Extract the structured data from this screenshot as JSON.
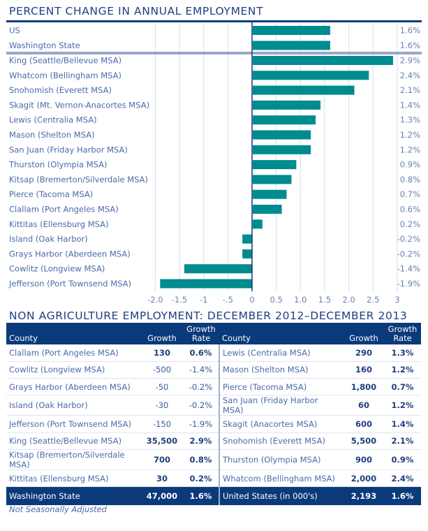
{
  "chart_data": {
    "type": "bar",
    "orientation": "horizontal",
    "title": "PERCENT CHANGE IN ANNUAL EMPLOYMENT",
    "xlabel": "",
    "ylabel": "",
    "xlim": [
      -2.0,
      3.0
    ],
    "x_ticks": [
      -2.0,
      -1.5,
      -1.0,
      -0.5,
      0,
      0.5,
      1.0,
      1.5,
      2.0,
      2.5,
      3.0
    ],
    "x_tick_labels": [
      "-2.0",
      "-1.5",
      "-1",
      "-.5",
      "0",
      "0.5",
      "1.0",
      "1.5",
      "2.0",
      "2.5",
      "3"
    ],
    "grid": true,
    "bar_color": "#008b8f",
    "benchmark_categories": [
      "US",
      "Washington State"
    ],
    "benchmark_values": [
      1.6,
      1.6
    ],
    "benchmark_value_labels": [
      "1.6%",
      "1.6%"
    ],
    "categories": [
      "King (Seattle/Bellevue MSA)",
      "Whatcom (Bellingham MSA)",
      "Snohomish (Everett MSA)",
      "Skagit (Mt. Vernon-Anacortes MSA)",
      "Lewis (Centralia MSA)",
      "Mason (Shelton MSA)",
      "San Juan (Friday Harbor MSA)",
      "Thurston (Olympia MSA)",
      "Kitsap (Bremerton/Silverdale MSA)",
      "Pierce (Tacoma MSA)",
      "Clallam (Port Angeles MSA)",
      "Kittitas (Ellensburg MSA)",
      "Island (Oak Harbor)",
      "Grays Harbor (Aberdeen MSA)",
      "Cowlitz (Longview MSA)",
      "Jefferson (Port Townsend MSA)"
    ],
    "values": [
      2.9,
      2.4,
      2.1,
      1.4,
      1.3,
      1.2,
      1.2,
      0.9,
      0.8,
      0.7,
      0.6,
      0.2,
      -0.2,
      -0.2,
      -1.4,
      -1.9
    ],
    "value_labels": [
      "2.9%",
      "2.4%",
      "2.1%",
      "1.4%",
      "1.3%",
      "1.2%",
      "1.2%",
      "0.9%",
      "0.8%",
      "0.7%",
      "0.6%",
      "0.2%",
      "-0.2%",
      "-0.2%",
      "-1.4%",
      "-1.9%"
    ]
  },
  "table": {
    "title": "NON AGRICULTURE EMPLOYMENT: DECEMBER 2012–DECEMBER 2013",
    "headers": {
      "county": "County",
      "growth": "Growth",
      "rate_line1": "Growth",
      "rate_line2": "Rate"
    },
    "rows": [
      {
        "left": {
          "county": "Clallam (Port Angeles MSA)",
          "growth": "130",
          "rate": "0.6%",
          "positive": true
        },
        "right": {
          "county": "Lewis (Centralia MSA)",
          "growth": "290",
          "rate": "1.3%",
          "positive": true
        }
      },
      {
        "left": {
          "county": "Cowlitz (Longview MSA)",
          "growth": "-500",
          "rate": "-1.4%",
          "positive": false
        },
        "right": {
          "county": "Mason (Shelton MSA)",
          "growth": "160",
          "rate": "1.2%",
          "positive": true
        }
      },
      {
        "left": {
          "county": "Grays Harbor (Aberdeen MSA)",
          "growth": "-50",
          "rate": "-0.2%",
          "positive": false
        },
        "right": {
          "county": "Pierce (Tacoma MSA)",
          "growth": "1,800",
          "rate": "0.7%",
          "positive": true
        }
      },
      {
        "left": {
          "county": "Island (Oak Harbor)",
          "growth": "-30",
          "rate": "-0.2%",
          "positive": false
        },
        "right": {
          "county": "San Juan (Friday Harbor MSA)",
          "growth": "60",
          "rate": "1.2%",
          "positive": true
        }
      },
      {
        "left": {
          "county": "Jefferson (Port Townsend MSA)",
          "growth": "-150",
          "rate": "-1.9%",
          "positive": false
        },
        "right": {
          "county": "Skagit (Anacortes MSA)",
          "growth": "600",
          "rate": "1.4%",
          "positive": true
        }
      },
      {
        "left": {
          "county": "King (Seattle/Bellevue MSA)",
          "growth": "35,500",
          "rate": "2.9%",
          "positive": true
        },
        "right": {
          "county": "Snohomish (Everett MSA)",
          "growth": "5,500",
          "rate": "2.1%",
          "positive": true
        }
      },
      {
        "left": {
          "county": "Kitsap (Bremerton/Silverdale MSA)",
          "growth": "700",
          "rate": "0.8%",
          "positive": true
        },
        "right": {
          "county": "Thurston (Olympia MSA)",
          "growth": "900",
          "rate": "0.9%",
          "positive": true
        }
      },
      {
        "left": {
          "county": "Kittitas (Ellensburg MSA)",
          "growth": "30",
          "rate": "0.2%",
          "positive": true
        },
        "right": {
          "county": "Whatcom (Bellingham MSA)",
          "growth": "2,000",
          "rate": "2.4%",
          "positive": true
        }
      }
    ],
    "totals": {
      "left": {
        "county": "Washington State",
        "growth": "47,000",
        "rate": "1.6%"
      },
      "right": {
        "county": "United States (in 000's)",
        "growth": "2,193",
        "rate": "1.6%"
      }
    },
    "footnote": "Not Seasonally Adjusted"
  },
  "colors": {
    "title": "#1f3f80",
    "header_bg": "#0b3a7a",
    "bar": "#008b8f",
    "grid": "#dde3ee",
    "rule": "#0b3a7a",
    "separator": "#9aa6c9"
  }
}
